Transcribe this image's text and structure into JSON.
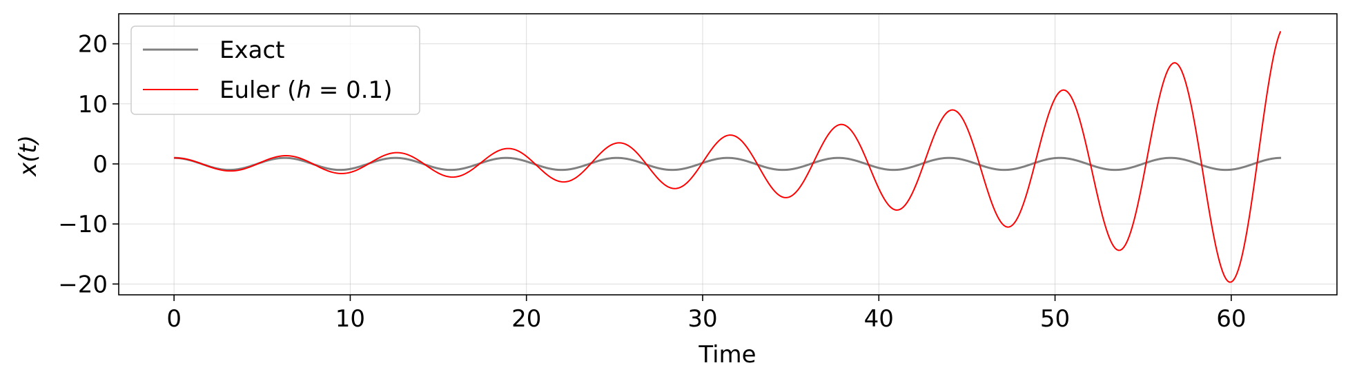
{
  "chart_data": {
    "type": "line",
    "xlabel": "Time",
    "ylabel": "x(t)",
    "xlim": [
      -3.14,
      66.0
    ],
    "ylim": [
      -21.8,
      25.0
    ],
    "xticks": [
      0,
      10,
      20,
      30,
      40,
      50,
      60
    ],
    "yticks": [
      -20,
      -10,
      0,
      10,
      20
    ],
    "xtick_labels": [
      "0",
      "10",
      "20",
      "30",
      "40",
      "50",
      "60"
    ],
    "ytick_labels": [
      "−20",
      "−10",
      "0",
      "10",
      "20"
    ],
    "grid": true,
    "legend_position": "top-left",
    "x_range": [
      0,
      62.83
    ],
    "sample_step": 0.1,
    "series": [
      {
        "name": "Exact",
        "color": "#808080",
        "equation": "x(t) = cos(t)"
      },
      {
        "name": "Euler (h = 0.1)",
        "legend_label_prefix": "Euler (",
        "legend_label_var": "h",
        "legend_label_suffix": " = 0.1)",
        "color": "#ff0000",
        "equation": "forward Euler for x'' = -x, h = 0.1, x(0) = 1, v(0) = 0"
      }
    ]
  }
}
